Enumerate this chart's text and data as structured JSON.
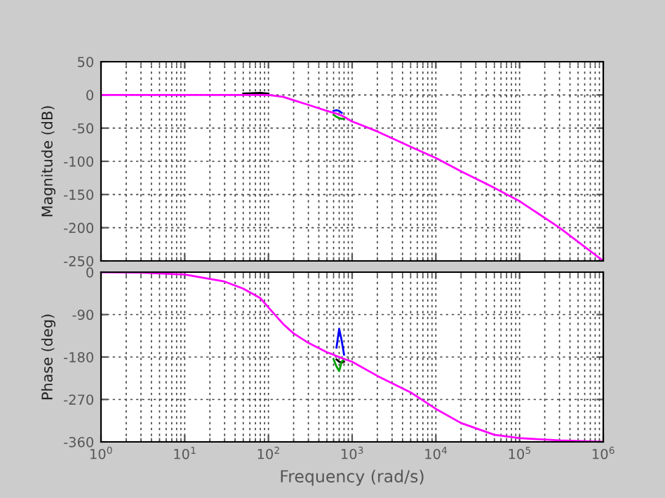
{
  "chart_data": [
    {
      "type": "line",
      "ylabel": "Magnitude (dB)",
      "log": "x",
      "xlim": [
        1,
        1000000
      ],
      "ylim": [
        -250,
        50
      ],
      "yticks": [
        -250,
        -200,
        -150,
        -100,
        -50,
        0,
        50
      ],
      "xticks": [
        {
          "value": 1,
          "label": null
        },
        {
          "value": 10,
          "label": null
        },
        {
          "value": 100,
          "label": null
        },
        {
          "value": 1000,
          "label": null
        },
        {
          "value": 10000,
          "label": null
        },
        {
          "value": 100000,
          "label": null
        },
        {
          "value": 1000000,
          "label": null
        }
      ],
      "tick_labels": "y",
      "grid": true,
      "legend": false,
      "line_style": "solid",
      "marker": "none",
      "x": [
        1,
        3,
        10,
        30,
        50,
        80,
        100,
        150,
        200,
        300,
        500,
        600,
        650,
        700,
        750,
        800,
        1000,
        2000,
        5000,
        10000,
        20000,
        50000,
        100000,
        300000,
        1000000
      ],
      "series": [
        {
          "color": "#000000",
          "values": [
            null,
            null,
            null,
            null,
            2,
            3,
            2,
            null,
            null,
            null,
            null,
            null,
            null,
            null,
            null,
            null,
            null,
            null,
            null,
            null,
            null,
            null,
            null,
            null,
            null
          ]
        },
        {
          "color": "#00a000",
          "values": [
            null,
            null,
            null,
            null,
            null,
            null,
            null,
            null,
            null,
            null,
            null,
            -30,
            -33,
            -35,
            -36,
            -36,
            null,
            null,
            null,
            null,
            null,
            null,
            null,
            null,
            null
          ]
        },
        {
          "color": "#0000ff",
          "values": [
            null,
            null,
            null,
            null,
            null,
            null,
            null,
            null,
            null,
            null,
            null,
            -24,
            -23,
            -24,
            -27,
            null,
            null,
            null,
            null,
            null,
            null,
            null,
            null,
            null,
            null
          ]
        },
        {
          "color": "#ff00ff",
          "values": [
            0,
            0,
            0,
            0,
            0,
            0,
            0,
            -3,
            -8,
            -15,
            -24,
            -27,
            -28,
            -30,
            -31,
            -33,
            -40,
            -55,
            -78,
            -95,
            -115,
            -140,
            -160,
            -200,
            -250
          ]
        }
      ]
    },
    {
      "type": "line",
      "ylabel": "Phase (deg)",
      "xlabel": "Frequency (rad/s)",
      "log": "x",
      "xlim": [
        1,
        1000000
      ],
      "ylim": [
        -360,
        0
      ],
      "yticks": [
        -360,
        -270,
        -180,
        -90,
        0
      ],
      "xticks": [
        {
          "value": 1,
          "label": "10$^{0}$"
        },
        {
          "value": 10,
          "label": "10$^{1}$"
        },
        {
          "value": 100,
          "label": "10$^{2}$"
        },
        {
          "value": 1000,
          "label": "10$^{3}$"
        },
        {
          "value": 10000,
          "label": "10$^{4}$"
        },
        {
          "value": 100000,
          "label": "10$^{5}$"
        },
        {
          "value": 1000000,
          "label": "10$^{6}$"
        }
      ],
      "grid": true,
      "legend": false,
      "line_style": "solid",
      "marker": "none",
      "x": [
        1,
        3,
        10,
        30,
        50,
        80,
        100,
        150,
        200,
        300,
        500,
        600,
        650,
        700,
        750,
        800,
        1000,
        2000,
        5000,
        10000,
        20000,
        50000,
        100000,
        300000,
        1000000
      ],
      "series": [
        {
          "color": "#000000",
          "values": [
            null,
            null,
            null,
            null,
            null,
            null,
            null,
            null,
            null,
            null,
            null,
            null,
            -185,
            -190,
            -192,
            -190,
            null,
            null,
            null,
            null,
            null,
            null,
            null,
            null,
            null
          ]
        },
        {
          "color": "#00a000",
          "values": [
            null,
            null,
            null,
            null,
            null,
            null,
            null,
            null,
            null,
            null,
            null,
            -185,
            -200,
            -210,
            -190,
            -185,
            null,
            null,
            null,
            null,
            null,
            null,
            null,
            null,
            null
          ]
        },
        {
          "color": "#0000ff",
          "values": [
            null,
            null,
            null,
            null,
            null,
            null,
            null,
            null,
            null,
            null,
            null,
            null,
            -160,
            -120,
            -145,
            -175,
            null,
            null,
            null,
            null,
            null,
            null,
            null,
            null,
            null
          ]
        },
        {
          "color": "#ff00ff",
          "values": [
            0,
            -1,
            -5,
            -20,
            -35,
            -55,
            -75,
            -110,
            -130,
            -150,
            -170,
            -175,
            -178,
            -180,
            -182,
            -184,
            -190,
            -220,
            -255,
            -290,
            -320,
            -345,
            -352,
            -357,
            -360
          ]
        }
      ]
    }
  ]
}
